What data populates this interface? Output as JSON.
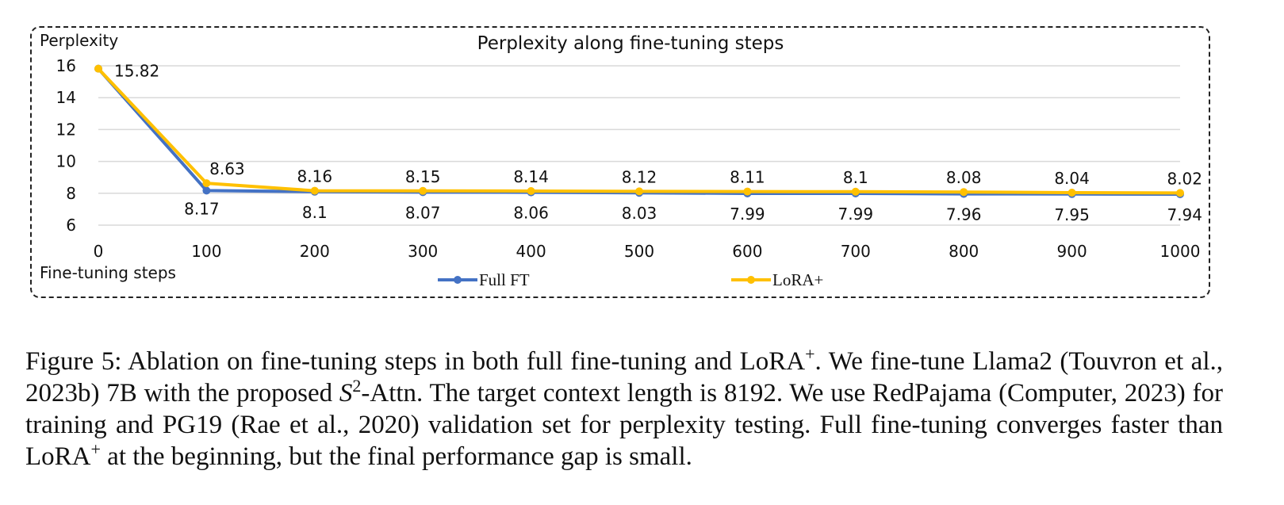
{
  "chart_data": {
    "type": "line",
    "title": "Perplexity along fine-tuning steps",
    "ylabel": "Perplexity",
    "xlabel": "Fine-tuning steps",
    "x": [
      0,
      100,
      200,
      300,
      400,
      500,
      600,
      700,
      800,
      900,
      1000
    ],
    "x_tick_labels": [
      "0",
      "100",
      "200",
      "300",
      "400",
      "500",
      "600",
      "700",
      "800",
      "900",
      "1000"
    ],
    "y_ticks": [
      6,
      8,
      10,
      12,
      14,
      16
    ],
    "ylim": [
      6,
      16
    ],
    "grid": true,
    "legend_position": "bottom",
    "series": [
      {
        "name": "Full FT",
        "color": "#4472C4",
        "values": [
          15.82,
          8.17,
          8.1,
          8.07,
          8.06,
          8.03,
          7.99,
          7.99,
          7.96,
          7.95,
          7.94
        ],
        "labels": [
          "",
          "8.17",
          "8.1",
          "8.07",
          "8.06",
          "8.03",
          "7.99",
          "7.99",
          "7.96",
          "7.95",
          "7.94"
        ]
      },
      {
        "name": "LoRA+",
        "color": "#FFC000",
        "values": [
          15.82,
          8.63,
          8.16,
          8.15,
          8.14,
          8.12,
          8.11,
          8.1,
          8.08,
          8.04,
          8.02
        ],
        "labels": [
          "15.82",
          "8.63",
          "8.16",
          "8.15",
          "8.14",
          "8.12",
          "8.11",
          "8.1",
          "8.08",
          "8.04",
          "8.02"
        ]
      }
    ]
  },
  "caption": {
    "figure_label": "Figure 5:",
    "part1": "Ablation on fine-tuning steps in both full fine-tuning and LoRA",
    "sup1": "+",
    "part2": ". We fine-tune Llama2 (Touvron et al., 2023b) 7B with the proposed ",
    "math_s": "S",
    "sup2": "2",
    "part3": "-Attn. The target context length is 8192. We use RedPajama (Computer, 2023) for training and PG19 (Rae et al., 2020) validation set for perplexity testing. Full fine-tuning converges faster than LoRA",
    "sup3": "+",
    "part4": " at the beginning, but the final performance gap is small."
  }
}
